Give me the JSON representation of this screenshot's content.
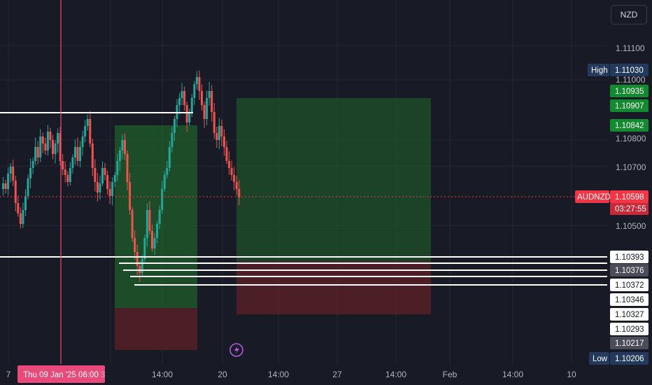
{
  "currency_button": "NZD",
  "symbol": "AUDNZD",
  "countdown": "03:27:55",
  "crosshair_date_label": "Thu 09 Jan '25   06:00",
  "high_label": "High",
  "low_label": "Low",
  "colors": {
    "background": "#181b25",
    "up": "#26a69a",
    "down": "#ef5350",
    "profit_zone": "#1f5d2b",
    "loss_zone": "#5a1f27",
    "crosshair": "#e84b79",
    "current_price": "#f23645"
  },
  "chart_data": {
    "type": "candlestick",
    "symbol": "AUDNZD",
    "price_axis_ticks": [
      "1.11100",
      "1.11000",
      "1.10800",
      "1.10700",
      "1.10500"
    ],
    "time_axis_ticks": [
      "7",
      "14:00",
      "20",
      "14:00",
      "27",
      "14:00",
      "Feb",
      "14:00",
      "10"
    ],
    "current_price": 1.10598,
    "high": 1.1103,
    "low": 1.10206,
    "price_badges": [
      {
        "value": "1.10935",
        "style": "green"
      },
      {
        "value": "1.10907",
        "style": "green"
      },
      {
        "value": "1.10842",
        "style": "green"
      },
      {
        "value": "1.10393",
        "style": "white"
      },
      {
        "value": "1.10376",
        "style": "grey"
      },
      {
        "value": "1.10372",
        "style": "white"
      },
      {
        "value": "1.10346",
        "style": "white"
      },
      {
        "value": "1.10327",
        "style": "white"
      },
      {
        "value": "1.10293",
        "style": "white"
      },
      {
        "value": "1.10217",
        "style": "grey"
      }
    ],
    "horizontal_levels": [
      1.1088,
      1.10393,
      1.10376,
      1.10372
    ],
    "positions": [
      {
        "entry": 1.10372,
        "target": 1.10842,
        "stop": 1.10217
      },
      {
        "entry": 1.10376,
        "target": 1.10935,
        "stop": 1.10293
      }
    ]
  }
}
